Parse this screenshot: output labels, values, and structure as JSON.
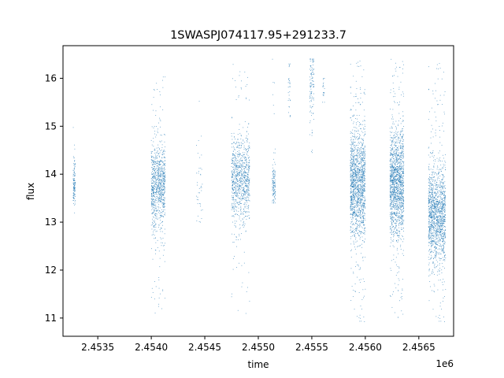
{
  "chart_data": {
    "type": "scatter",
    "title": "1SWASPJ074117.95+291233.7",
    "xlabel": "time",
    "ylabel": "flux",
    "x_offset_label": "1e6",
    "xlim": [
      2453175,
      2456825
    ],
    "ylim": [
      10.62,
      16.68
    ],
    "x_ticks": [
      {
        "value": 2453500,
        "label": "2.4535"
      },
      {
        "value": 2454000,
        "label": "2.4540"
      },
      {
        "value": 2454500,
        "label": "2.4545"
      },
      {
        "value": 2455000,
        "label": "2.4550"
      },
      {
        "value": 2455500,
        "label": "2.4555"
      },
      {
        "value": 2456000,
        "label": "2.4560"
      },
      {
        "value": 2456500,
        "label": "2.4565"
      }
    ],
    "y_ticks": [
      {
        "value": 11,
        "label": "11"
      },
      {
        "value": 12,
        "label": "12"
      },
      {
        "value": 13,
        "label": "13"
      },
      {
        "value": 14,
        "label": "14"
      },
      {
        "value": 15,
        "label": "15"
      },
      {
        "value": 16,
        "label": "16"
      }
    ],
    "grid": false,
    "marker_color": "#1f77b4",
    "observing_seasons": [
      {
        "t_start": 2453270,
        "t_end": 2453290,
        "flux_center": 13.8,
        "flux_spread": 0.25,
        "flux_min": 12.95,
        "flux_max": 15.35,
        "points": 120
      },
      {
        "t_start": 2454000,
        "t_end": 2454130,
        "flux_center": 13.75,
        "flux_spread": 0.45,
        "flux_min": 11.0,
        "flux_max": 16.1,
        "points": 900
      },
      {
        "t_start": 2454420,
        "t_end": 2454480,
        "flux_center": 13.6,
        "flux_spread": 0.5,
        "flux_min": 13.0,
        "flux_max": 15.6,
        "points": 40
      },
      {
        "t_start": 2454750,
        "t_end": 2454920,
        "flux_center": 13.9,
        "flux_spread": 0.45,
        "flux_min": 11.0,
        "flux_max": 16.3,
        "points": 900
      },
      {
        "t_start": 2455130,
        "t_end": 2455160,
        "flux_center": 13.75,
        "flux_spread": 0.18,
        "flux_min": 13.4,
        "flux_max": 16.4,
        "points": 120
      },
      {
        "t_start": 2455280,
        "t_end": 2455300,
        "flux_center": 15.8,
        "flux_spread": 0.35,
        "flux_min": 15.2,
        "flux_max": 16.3,
        "points": 30
      },
      {
        "t_start": 2455480,
        "t_end": 2455520,
        "flux_center": 15.8,
        "flux_spread": 0.35,
        "flux_min": 14.2,
        "flux_max": 16.4,
        "points": 110
      },
      {
        "t_start": 2455600,
        "t_end": 2455620,
        "flux_center": 15.8,
        "flux_spread": 0.2,
        "flux_min": 15.5,
        "flux_max": 16.0,
        "points": 20
      },
      {
        "t_start": 2455860,
        "t_end": 2456000,
        "flux_center": 13.8,
        "flux_spread": 0.55,
        "flux_min": 10.9,
        "flux_max": 16.4,
        "points": 1500
      },
      {
        "t_start": 2456230,
        "t_end": 2456360,
        "flux_center": 13.8,
        "flux_spread": 0.55,
        "flux_min": 10.95,
        "flux_max": 16.4,
        "points": 1500
      },
      {
        "t_start": 2456590,
        "t_end": 2456750,
        "flux_center": 13.15,
        "flux_spread": 0.5,
        "flux_min": 10.9,
        "flux_max": 16.35,
        "points": 1400
      }
    ]
  }
}
